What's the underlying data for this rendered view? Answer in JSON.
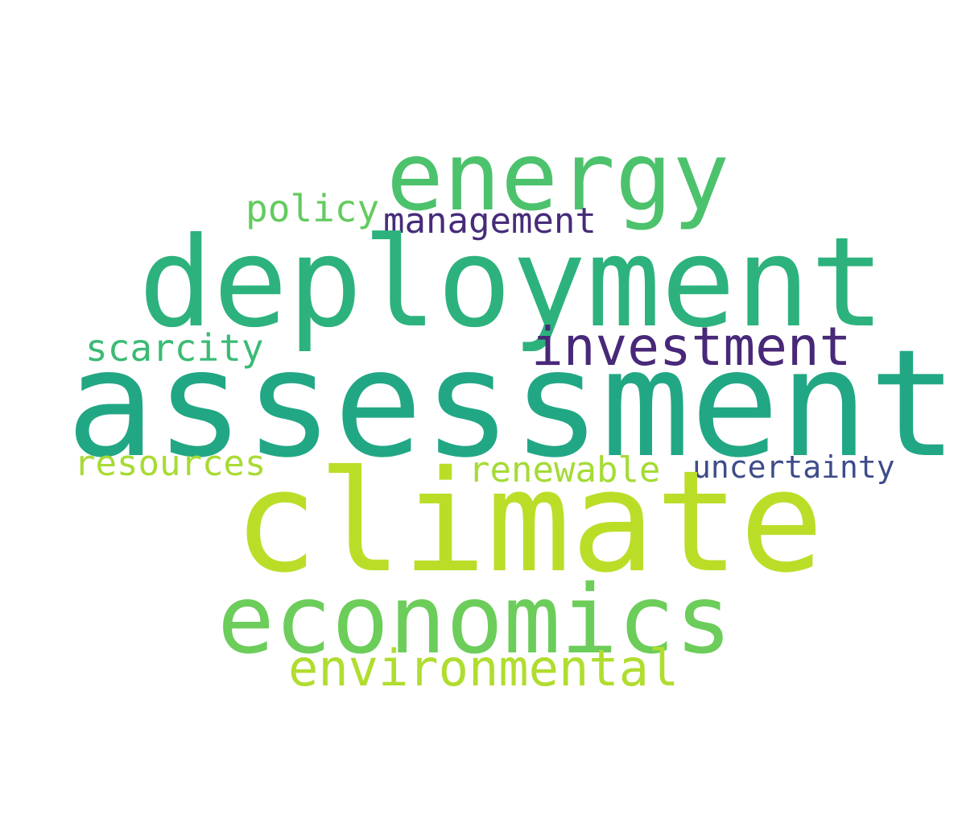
{
  "words": [
    {
      "text": "assessment",
      "color": "#22a785"
    },
    {
      "text": "climate",
      "color": "#bade28"
    },
    {
      "text": "deployment",
      "color": "#2db27d"
    },
    {
      "text": "economics",
      "color": "#6ccd5a"
    },
    {
      "text": "energy",
      "color": "#4cc26c"
    },
    {
      "text": "investment",
      "color": "#482878"
    },
    {
      "text": "environmental",
      "color": "#b0dd2f"
    },
    {
      "text": "management",
      "color": "#472c7a"
    },
    {
      "text": "policy",
      "color": "#63cb5f"
    },
    {
      "text": "scarcity",
      "color": "#3bbb75"
    },
    {
      "text": "resources",
      "color": "#a8db34"
    },
    {
      "text": "renewable",
      "color": "#a5db36"
    },
    {
      "text": "uncertainty",
      "color": "#3e4c8a"
    }
  ]
}
